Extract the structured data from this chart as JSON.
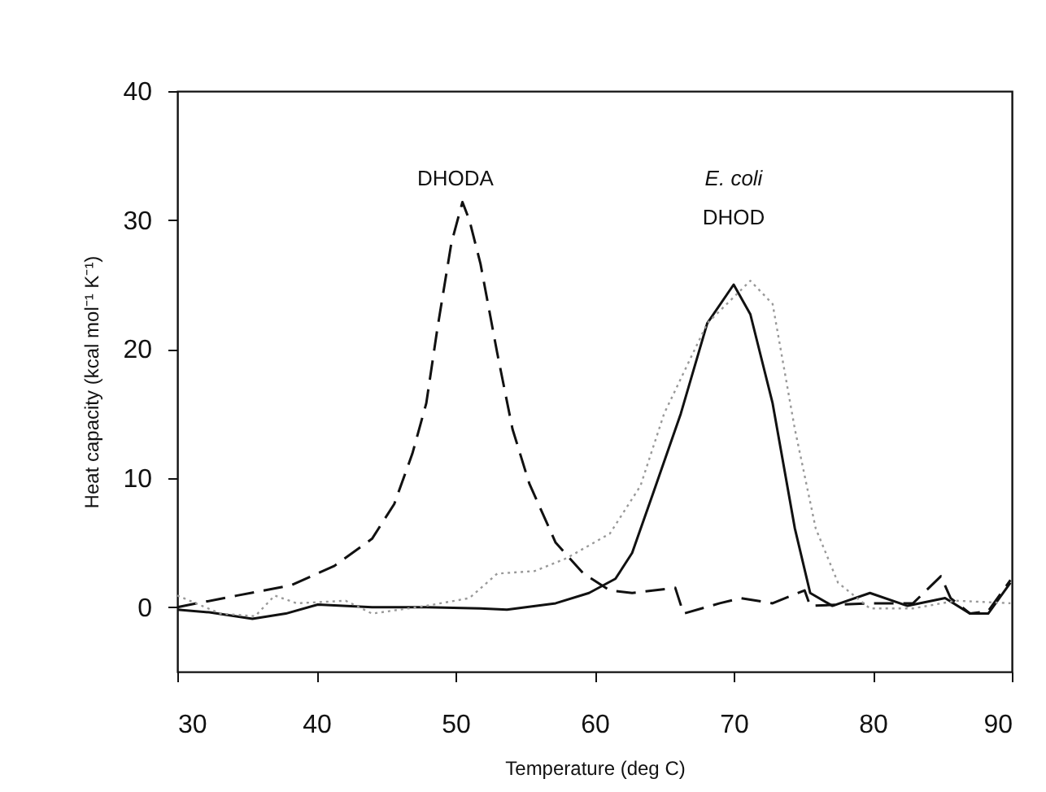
{
  "chart_data": {
    "type": "line",
    "xlabel": "Temperature (deg C)",
    "ylabel": "Heat capacity (kcal mol⁻¹ K⁻¹)",
    "xlim": [
      30,
      90
    ],
    "xticks": [
      30,
      40,
      50,
      60,
      70,
      80,
      90
    ],
    "ylim": [
      -5,
      40
    ],
    "yticks": [
      0,
      10,
      20,
      30,
      40
    ],
    "grid": false,
    "marker": "none",
    "annotations": [
      "DHODA",
      "E. coli",
      "DHOD"
    ],
    "series": [
      {
        "color": "#111111",
        "line_style": "dashed",
        "x": [
          30,
          34.3,
          38.2,
          41.3,
          44,
          45.6,
          46.9,
          47.9,
          48.7,
          49.7,
          50.5,
          51,
          51.8,
          53,
          54.1,
          55.3,
          57.2,
          59.2,
          61.1,
          62.7,
          65.8,
          66.4,
          69,
          70.5,
          72.8,
          75.1,
          75.5,
          79.8,
          82.9,
          84.9,
          85.6,
          87,
          88.3,
          89.9
        ],
        "values": [
          0,
          0.9,
          1.7,
          3.2,
          5.3,
          8,
          11.9,
          15.8,
          21.6,
          28.2,
          31.4,
          30,
          26.6,
          19.7,
          13.8,
          9.6,
          5,
          2.6,
          1.3,
          1.1,
          1.5,
          -0.5,
          0.3,
          0.7,
          0.3,
          1.3,
          0.1,
          0.3,
          0.3,
          2.4,
          0.7,
          -0.5,
          -0.3,
          2.1
        ]
      },
      {
        "color": "#111111",
        "line_style": "solid",
        "x": [
          30,
          32.3,
          35.4,
          37.8,
          40.1,
          44,
          47.9,
          51.8,
          53.7,
          57.2,
          59.6,
          61.5,
          62.7,
          64.2,
          66.2,
          68.1,
          70,
          71.2,
          72.8,
          74.4,
          75.5,
          77.1,
          79.8,
          82.5,
          85.2,
          87,
          88.3,
          89.9
        ],
        "values": [
          -0.2,
          -0.4,
          -0.9,
          -0.5,
          0.2,
          0,
          0,
          -0.1,
          -0.2,
          0.3,
          1.1,
          2.2,
          4.2,
          8.8,
          15,
          22,
          25,
          22.7,
          15.8,
          6.1,
          1.1,
          0.1,
          1.1,
          0.1,
          0.7,
          -0.5,
          -0.5,
          1.9
        ]
      },
      {
        "color": "#999999",
        "line_style": "dotted",
        "x": [
          30,
          33.1,
          35.6,
          37,
          38.6,
          42.1,
          44,
          47.9,
          51,
          53,
          55.7,
          58,
          61.1,
          63.3,
          65,
          68.1,
          71.2,
          72.8,
          74.4,
          75.9,
          77.5,
          79.8,
          82.9,
          86,
          89.9
        ],
        "values": [
          0.9,
          -0.5,
          -0.7,
          0.9,
          0.3,
          0.5,
          -0.5,
          0.1,
          0.7,
          2.6,
          2.8,
          3.8,
          5.7,
          9.4,
          15,
          22,
          25.3,
          23.5,
          13.8,
          6.1,
          1.9,
          -0.1,
          -0.1,
          0.5,
          0.3
        ]
      }
    ]
  }
}
